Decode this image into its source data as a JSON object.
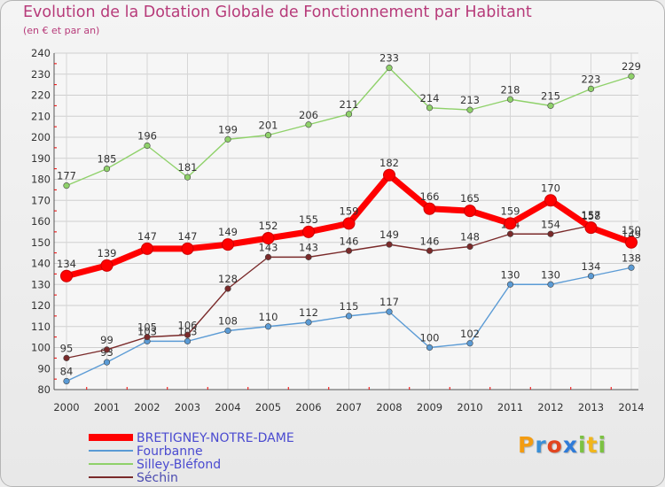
{
  "header": {
    "title": "Evolution de la Dotation Globale de Fonctionnement par Habitant",
    "subtitle": "(en € et par an)"
  },
  "logo": {
    "letters": [
      "P",
      "r",
      "o",
      "x",
      "i",
      "t",
      "i"
    ],
    "colors": [
      "#f39c12",
      "#3a8fd6",
      "#e2451f",
      "#2f7bd8",
      "#7cc242",
      "#f1b61b",
      "#7cc242"
    ]
  },
  "chart_data": {
    "type": "line",
    "x": [
      "2000",
      "2001",
      "2002",
      "2003",
      "2004",
      "2005",
      "2006",
      "2007",
      "2008",
      "2009",
      "2010",
      "2011",
      "2012",
      "2013",
      "2014"
    ],
    "ylim": [
      80,
      240
    ],
    "yticks": [
      "80",
      "90",
      "100",
      "110",
      "120",
      "130",
      "140",
      "150",
      "160",
      "170",
      "180",
      "190",
      "200",
      "210",
      "220",
      "230",
      "240"
    ],
    "grid": true,
    "legend_position": "bottom-left",
    "series": [
      {
        "name": "BRETIGNEY-NOTRE-DAME",
        "color": "#ff0000",
        "values": [
          134,
          139,
          147,
          147,
          149,
          152,
          155,
          159,
          182,
          166,
          165,
          159,
          170,
          157,
          150
        ],
        "labels": [
          "134",
          "139",
          "147",
          "147",
          "149",
          "152",
          "155",
          "159",
          "182",
          "166",
          "165",
          "159",
          "170",
          "157",
          "150"
        ]
      },
      {
        "name": "Fourbanne",
        "color": "#5b9bd5",
        "values": [
          84,
          93,
          103,
          103,
          108,
          110,
          112,
          115,
          117,
          100,
          102,
          130,
          130,
          134,
          138
        ],
        "labels": [
          "84",
          "93",
          "103",
          "103",
          "108",
          "110",
          "112",
          "115",
          "117",
          "100",
          "102",
          "130",
          "130",
          "134",
          "138"
        ]
      },
      {
        "name": "Silley-Bléfond",
        "color": "#8fd16a",
        "values": [
          177,
          185,
          196,
          181,
          199,
          201,
          206,
          211,
          233,
          214,
          213,
          218,
          215,
          223,
          229
        ],
        "labels": [
          "177",
          "185",
          "196",
          "181",
          "199",
          "201",
          "206",
          "211",
          "233",
          "214",
          "213",
          "218",
          "215",
          "223",
          "229"
        ]
      },
      {
        "name": "Séchin",
        "color": "#7a2a2a",
        "values": [
          95,
          99,
          105,
          106,
          128,
          143,
          143,
          146,
          149,
          146,
          148,
          154,
          154,
          158,
          149
        ],
        "labels": [
          "95",
          "99",
          "105",
          "106",
          "128",
          "143",
          "143",
          "146",
          "149",
          "146",
          "148",
          "154",
          "154",
          "158",
          "149"
        ]
      }
    ]
  }
}
